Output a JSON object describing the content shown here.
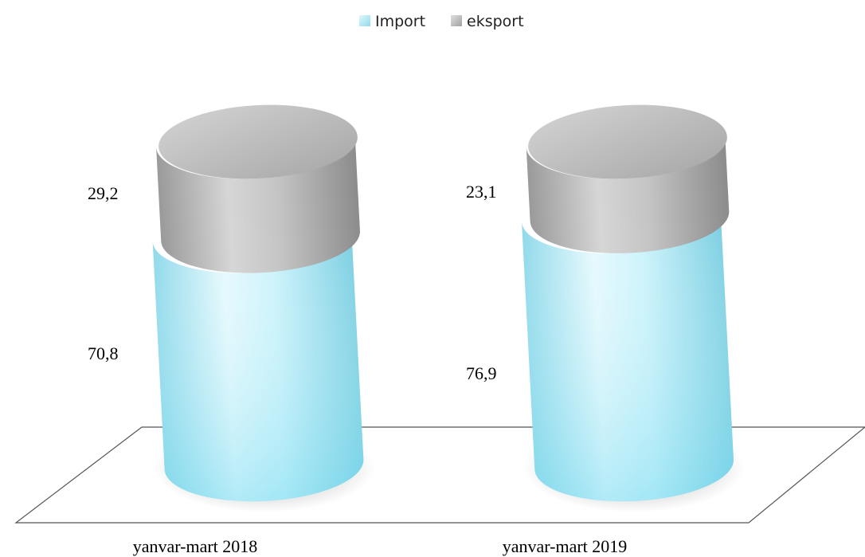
{
  "chart_data": {
    "type": "bar",
    "stacked": true,
    "style": "3d-cylinder",
    "title": "",
    "xlabel": "",
    "ylabel": "",
    "ylim": [
      0,
      100
    ],
    "grid": false,
    "legend_position": "top-center",
    "categories": [
      "yanvar-mart 2018",
      "yanvar-mart 2019"
    ],
    "series": [
      {
        "name": "Import",
        "values": [
          70.8,
          76.9
        ],
        "labels": [
          "70,8",
          "76,9"
        ],
        "color": "#a8e8f6"
      },
      {
        "name": "eksport",
        "values": [
          29.2,
          23.1
        ],
        "labels": [
          "29,2",
          "23,1"
        ],
        "color": "#b4b4b4"
      }
    ]
  }
}
